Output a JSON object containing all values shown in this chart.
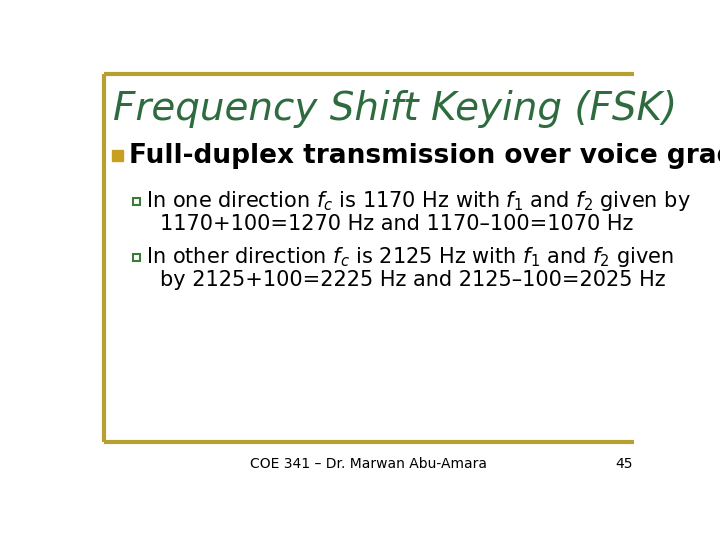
{
  "title": "Frequency Shift Keying (FSK)",
  "title_color": "#2E6B3E",
  "title_fontsize": 28,
  "background_color": "#FFFFFF",
  "border_color": "#B8A030",
  "bullet_color": "#C8A020",
  "bullet_text": "Full-duplex transmission over voice grade line",
  "bullet_fontsize": 19,
  "sub_fontsize": 15,
  "sub_square_color": "#3A7A3A",
  "sub1_line1": "In one direction $f_c$ is 1170 Hz with $f_1$ and $f_2$ given by",
  "sub1_line2": "1170+100=1270 Hz and 1170–100=1070 Hz",
  "sub2_line1": "In other direction $f_c$ is 2125 Hz with $f_1$ and $f_2$ given",
  "sub2_line2": "by 2125+100=2225 Hz and 2125–100=2025 Hz",
  "footer_text": "COE 341 – Dr. Marwan Abu-Amara",
  "footer_page": "45",
  "footer_fontsize": 10
}
